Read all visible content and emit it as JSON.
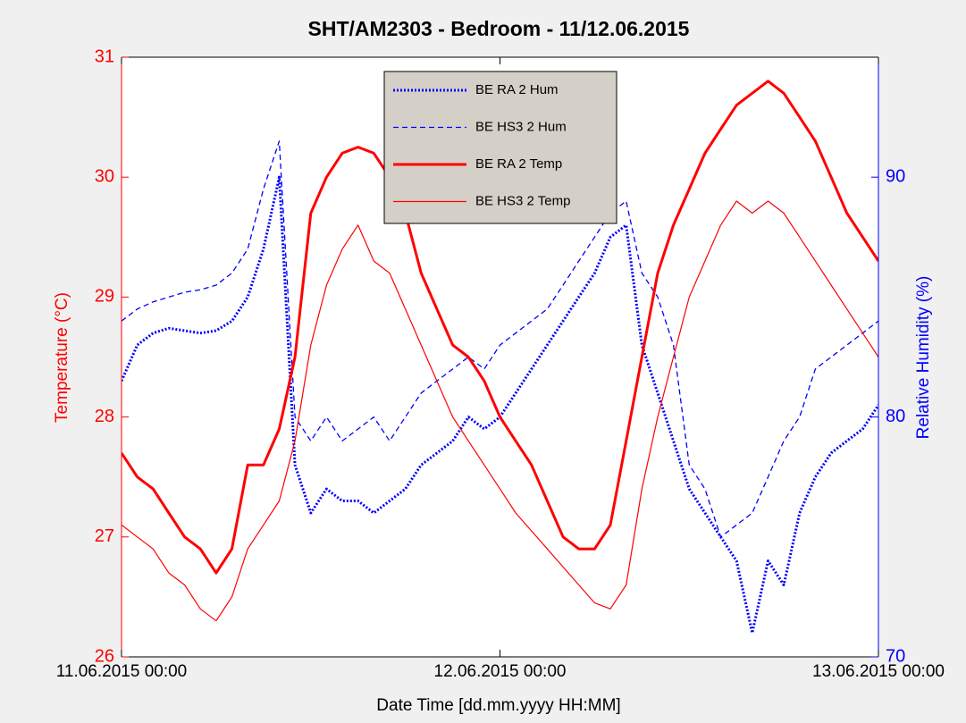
{
  "chart_data": {
    "type": "line",
    "title": "SHT/AM2303 - Bedroom - 11/12.06.2015",
    "x_label": "Date Time [dd.mm.yyyy HH:MM]",
    "y_label": "Temperature (°C)",
    "y2_label": "Relative Humidity (%)",
    "y_color": "#ff0000",
    "y2_color": "#0000ff",
    "xlim": [
      "11.06.2015 00:00",
      "13.06.2015 00:00"
    ],
    "xticks": [
      "11.06.2015 00:00",
      "12.06.2015 00:00",
      "13.06.2015 00:00"
    ],
    "ylim": [
      26,
      31
    ],
    "yticks": [
      26,
      27,
      28,
      29,
      30,
      31
    ],
    "y2lim": [
      70,
      95
    ],
    "y2ticks": [
      70,
      80,
      90
    ],
    "legend": "top-center",
    "x": [
      "11.06.2015 00:00",
      "11.06.2015 01:00",
      "11.06.2015 02:00",
      "11.06.2015 03:00",
      "11.06.2015 04:00",
      "11.06.2015 05:00",
      "11.06.2015 06:00",
      "11.06.2015 07:00",
      "11.06.2015 08:00",
      "11.06.2015 09:00",
      "11.06.2015 10:00",
      "11.06.2015 11:00",
      "11.06.2015 12:00",
      "11.06.2015 13:00",
      "11.06.2015 14:00",
      "11.06.2015 15:00",
      "11.06.2015 16:00",
      "11.06.2015 17:00",
      "11.06.2015 18:00",
      "11.06.2015 19:00",
      "11.06.2015 20:00",
      "11.06.2015 21:00",
      "11.06.2015 22:00",
      "11.06.2015 23:00",
      "12.06.2015 00:00",
      "12.06.2015 01:00",
      "12.06.2015 02:00",
      "12.06.2015 03:00",
      "12.06.2015 04:00",
      "12.06.2015 05:00",
      "12.06.2015 06:00",
      "12.06.2015 07:00",
      "12.06.2015 08:00",
      "12.06.2015 09:00",
      "12.06.2015 10:00",
      "12.06.2015 11:00",
      "12.06.2015 12:00",
      "12.06.2015 13:00",
      "12.06.2015 14:00",
      "12.06.2015 15:00",
      "12.06.2015 16:00",
      "12.06.2015 17:00",
      "12.06.2015 18:00",
      "12.06.2015 19:00",
      "12.06.2015 20:00",
      "12.06.2015 21:00",
      "12.06.2015 22:00",
      "12.06.2015 23:00",
      "13.06.2015 00:00"
    ],
    "series": [
      {
        "name": "BE RA 2 Hum",
        "color": "#0000ff",
        "axis": "y2",
        "line_style": "dotted",
        "line_width": 3,
        "values": [
          81.5,
          83,
          83.5,
          83.7,
          83.6,
          83.5,
          83.6,
          84,
          85,
          87,
          90,
          78,
          76,
          77,
          76.5,
          76.5,
          76,
          76.5,
          77,
          78,
          78.5,
          79,
          80,
          79.5,
          80,
          81,
          82,
          83,
          84,
          85,
          86,
          87.5,
          88,
          83,
          81,
          79,
          77,
          76,
          75,
          74,
          71,
          74,
          73,
          76,
          77.5,
          78.5,
          79,
          79.5,
          80.5
        ]
      },
      {
        "name": "BE HS3 2 Hum",
        "color": "#0000ff",
        "axis": "y2",
        "line_style": "dashed",
        "line_width": 1.3,
        "values": [
          84,
          84.5,
          84.8,
          85,
          85.2,
          85.3,
          85.5,
          86,
          87,
          89.5,
          91.5,
          80,
          79,
          80,
          79,
          79.5,
          80,
          79,
          80,
          81,
          81.5,
          82,
          82.5,
          82,
          83,
          83.5,
          84,
          84.5,
          85.5,
          86.5,
          87.5,
          88.5,
          89,
          86,
          85,
          83,
          78,
          77,
          75,
          75.5,
          76,
          77.5,
          79,
          80,
          82,
          82.5,
          83,
          83.5,
          84
        ]
      },
      {
        "name": "BE RA 2 Temp",
        "color": "#ff0000",
        "axis": "y",
        "line_style": "solid",
        "line_width": 3,
        "values": [
          27.7,
          27.5,
          27.4,
          27.2,
          27,
          26.9,
          26.7,
          26.9,
          27.6,
          27.6,
          27.9,
          28.5,
          29.7,
          30,
          30.2,
          30.25,
          30.2,
          30,
          29.7,
          29.2,
          28.9,
          28.6,
          28.5,
          28.3,
          28,
          27.8,
          27.6,
          27.3,
          27,
          26.9,
          26.9,
          27.1,
          27.8,
          28.5,
          29.2,
          29.6,
          29.9,
          30.2,
          30.4,
          30.6,
          30.7,
          30.8,
          30.7,
          30.5,
          30.3,
          30,
          29.7,
          29.5,
          29.3
        ]
      },
      {
        "name": "BE HS3 2 Temp",
        "color": "#ff0000",
        "axis": "y",
        "line_style": "solid",
        "line_width": 1.2,
        "values": [
          27.1,
          27,
          26.9,
          26.7,
          26.6,
          26.4,
          26.3,
          26.5,
          26.9,
          27.1,
          27.3,
          27.8,
          28.6,
          29.1,
          29.4,
          29.6,
          29.3,
          29.2,
          28.9,
          28.6,
          28.3,
          28,
          27.8,
          27.6,
          27.4,
          27.2,
          27.05,
          26.9,
          26.75,
          26.6,
          26.45,
          26.4,
          26.6,
          27.4,
          28,
          28.5,
          29,
          29.3,
          29.6,
          29.8,
          29.7,
          29.8,
          29.7,
          29.5,
          29.3,
          29.1,
          28.9,
          28.7,
          28.5
        ]
      }
    ]
  }
}
